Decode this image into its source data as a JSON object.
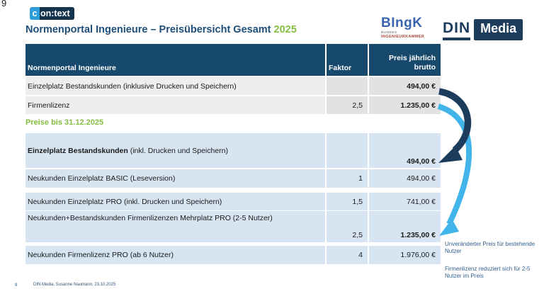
{
  "slide": {
    "corner_number": "9",
    "title": {
      "text": "Normenportal Ingenieure – Preisübersicht Gesamt",
      "year": "2025"
    },
    "section_label": "Preise bis 31.12.2025",
    "footer": {
      "page_number": "9",
      "credit": "DIN Media, Susanne Naumann, 23.10.2025"
    }
  },
  "logos": {
    "context": {
      "c": "c",
      "rest": "on:text"
    },
    "bingk": {
      "main": "BIngK",
      "sub1": "BUNDES",
      "sub2": "INGENIEURKAMMER"
    },
    "din_media": {
      "din": "DIN",
      "media": "Media"
    }
  },
  "table1": {
    "headers": {
      "col1": "Normenportal Ingenieure",
      "col2": "Faktor",
      "col3": "Preis jährlich\nbrutto"
    },
    "rows": [
      {
        "label": "Einzelplatz Bestandskunden (inklusive Drucken und Speichern)",
        "faktor": "",
        "price": "494,00 €",
        "price_bold": true
      },
      {
        "label": "Firmenlizenz",
        "faktor": "2,5",
        "price": "1.235,00 €",
        "price_bold": true
      }
    ]
  },
  "table2": {
    "rows": [
      {
        "label_bold": "Einzelplatz Bestandskunden",
        "label": " (inkl. Drucken und Speichern)",
        "faktor": "",
        "price": "494,00 €",
        "price_bold": true
      },
      {
        "label": "Neukunden Einzelplatz BASIC (Leseversion)",
        "faktor": "1",
        "price": "494,00 €",
        "price_bold": false
      },
      {
        "label": "Neukunden Einzelplatz PRO (inkl. Drucken und Speichern)",
        "faktor": "1,5",
        "price": "741,00 €",
        "price_bold": false
      },
      {
        "label": "Neukunden+Bestandskunden Firmenlizenzen Mehrplatz PRO (2-5 Nutzer)",
        "faktor": "2,5",
        "price": "1.235,00 €",
        "price_bold": true
      },
      {
        "label": "Neukunden Firmenlizenz PRO (ab 6 Nutzer)",
        "faktor": "4",
        "price": "1.976,00 €",
        "price_bold": false
      }
    ]
  },
  "annotations": [
    {
      "text": "Unveränderter Preis für bestehende Nutzer"
    },
    {
      "text": "Firmenlizenz reduziert sich für 2-5 Nutzer im Preis"
    }
  ],
  "colors": {
    "header_navy": "#17496d",
    "title_blue": "#1f4e79",
    "accent_green": "#85bd3f",
    "row_gray_label": "#eeeeee",
    "row_gray_value": "#e2e2e2",
    "row_blue": "#d7e5f2",
    "arrow_dark": "#1c3c5e",
    "arrow_light": "#41b4e9"
  }
}
